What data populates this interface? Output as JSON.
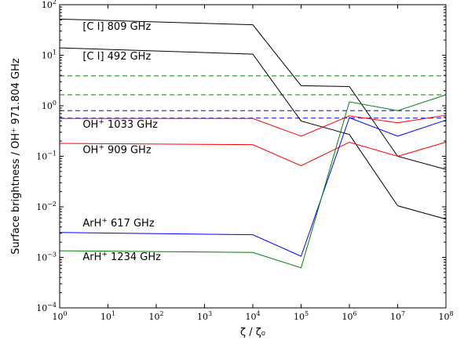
{
  "chart_data": {
    "type": "line",
    "xlabel": "ζ / ζ₀",
    "ylabel": "Surface brightness / OH⁺ 971.804 GHz",
    "x_scale": "log",
    "y_scale": "log",
    "xlim": [
      1,
      100000000
    ],
    "ylim": [
      0.0001,
      100
    ],
    "grid": false,
    "x_ticks": [
      {
        "base": "10",
        "exp": "0"
      },
      {
        "base": "10",
        "exp": "1"
      },
      {
        "base": "10",
        "exp": "2"
      },
      {
        "base": "10",
        "exp": "3"
      },
      {
        "base": "10",
        "exp": "4"
      },
      {
        "base": "10",
        "exp": "5"
      },
      {
        "base": "10",
        "exp": "6"
      },
      {
        "base": "10",
        "exp": "7"
      },
      {
        "base": "10",
        "exp": "8"
      }
    ],
    "y_ticks": [
      {
        "base": "10",
        "exp": "−4"
      },
      {
        "base": "10",
        "exp": "−3"
      },
      {
        "base": "10",
        "exp": "−2"
      },
      {
        "base": "10",
        "exp": "−1"
      },
      {
        "base": "10",
        "exp": "0"
      },
      {
        "base": "10",
        "exp": "1"
      },
      {
        "base": "10",
        "exp": "2"
      }
    ],
    "x": [
      1,
      10000,
      100000,
      1000000,
      10000000,
      100000000
    ],
    "series": [
      {
        "color": "#000000",
        "style": "solid",
        "values": [
          52,
          40,
          2.5,
          2.4,
          0.1,
          0.055
        ]
      },
      {
        "color": "#000000",
        "style": "solid",
        "values": [
          14,
          10.5,
          0.5,
          0.27,
          0.0105,
          0.0057
        ]
      },
      {
        "color": "#ff0000",
        "style": "solid",
        "values": [
          0.56,
          0.56,
          0.25,
          0.63,
          0.46,
          0.65
        ]
      },
      {
        "color": "#ff0000",
        "style": "solid",
        "values": [
          0.18,
          0.17,
          0.065,
          0.19,
          0.1,
          0.19
        ]
      },
      {
        "color": "#0000ff",
        "style": "solid",
        "values": [
          0.0031,
          0.0028,
          0.00105,
          0.58,
          0.25,
          0.52
        ]
      },
      {
        "color": "#008000",
        "style": "solid",
        "values": [
          0.00135,
          0.00125,
          0.00062,
          1.2,
          0.8,
          1.65
        ]
      }
    ],
    "reference_lines": [
      {
        "color": "#008000",
        "style": "dashed",
        "y": 3.9
      },
      {
        "color": "#008000",
        "style": "dashed",
        "y": 1.65
      },
      {
        "color": "#0000ff",
        "style": "dashed",
        "y": 0.8
      },
      {
        "color": "#0000ff",
        "style": "dashed",
        "y": 0.57
      }
    ],
    "annotations": [
      {
        "text": "[C I] 809 GHz",
        "x": 3,
        "y": 32,
        "sup": "",
        "tail": ""
      },
      {
        "text": "[C I] 492 GHz",
        "x": 3,
        "y": 8.2,
        "sup": "",
        "tail": ""
      },
      {
        "text": "OH",
        "sup": "+",
        "tail": " 1033 GHz",
        "x": 3,
        "y": 0.37
      },
      {
        "text": "OH",
        "sup": "+",
        "tail": " 909 GHz",
        "x": 3,
        "y": 0.115
      },
      {
        "text": "ArH",
        "sup": "+",
        "tail": " 617 GHz",
        "x": 3,
        "y": 0.0041
      },
      {
        "text": "ArH",
        "sup": "+",
        "tail": " 1234 GHz",
        "x": 3,
        "y": 0.00088
      }
    ]
  }
}
